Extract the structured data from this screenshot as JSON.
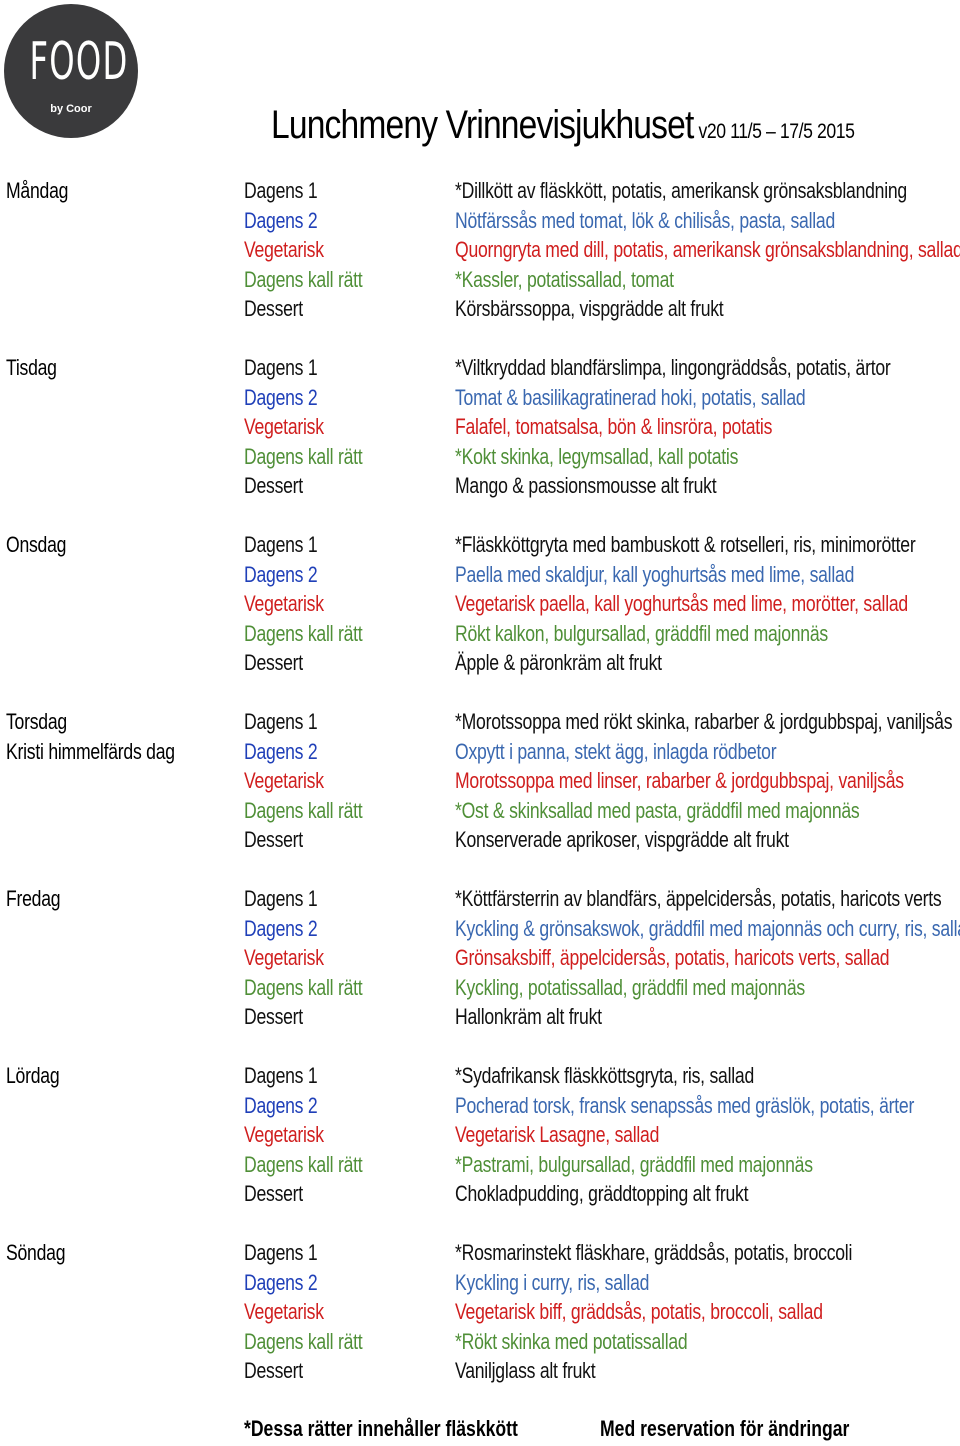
{
  "logo": {
    "word": "FOOD",
    "sub": "by Coor"
  },
  "header": {
    "title": "Lunchmeny Vrinnevisjukhuset",
    "subtitle": "v20 11/5 – 17/5 2015"
  },
  "colors": {
    "dagens1": "#111111",
    "dagens2": "#3a68b0",
    "vegetarisk": "#d01e1e",
    "kall": "#4f8f37",
    "dessert": "#111111",
    "category_dagens2": "#1f3fb8"
  },
  "days": [
    {
      "day": "Måndag",
      "note": "",
      "rows": [
        {
          "category": "Dagens 1",
          "dish": "*Dillkött av fläskkött, potatis, amerikansk grönsaksblandning"
        },
        {
          "category": "Dagens 2",
          "dish": "Nötfärssås med tomat, lök & chilisås, pasta, sallad"
        },
        {
          "category": "Vegetarisk",
          "dish": "Quorngryta med dill, potatis, amerikansk grönsaksblandning, sallad"
        },
        {
          "category": "Dagens kall rätt",
          "dish": "*Kassler, potatissallad, tomat"
        },
        {
          "category": "Dessert",
          "dish": "Körsbärssoppa, vispgrädde alt frukt"
        }
      ]
    },
    {
      "day": "Tisdag",
      "note": "",
      "rows": [
        {
          "category": "Dagens 1",
          "dish": "*Viltkryddad blandfärslimpa, lingongräddsås, potatis, ärtor"
        },
        {
          "category": "Dagens 2",
          "dish": "Tomat & basilikagratinerad hoki, potatis, sallad"
        },
        {
          "category": "Vegetarisk",
          "dish": "Falafel, tomatsalsa, bön & linsröra, potatis"
        },
        {
          "category": "Dagens kall rätt",
          "dish": "*Kokt skinka, legymsallad, kall potatis"
        },
        {
          "category": "Dessert",
          "dish": "Mango & passionsmousse alt frukt"
        }
      ]
    },
    {
      "day": "Onsdag",
      "note": "",
      "rows": [
        {
          "category": "Dagens 1",
          "dish": "*Fläskköttgryta med bambuskott & rotselleri, ris, minimorötter"
        },
        {
          "category": "Dagens 2",
          "dish": "Paella med skaldjur, kall yoghurtsås med lime, sallad"
        },
        {
          "category": "Vegetarisk",
          "dish": "Vegetarisk paella, kall yoghurtsås med lime, morötter, sallad"
        },
        {
          "category": "Dagens kall rätt",
          "dish": "Rökt kalkon, bulgursallad, gräddfil med majonnäs"
        },
        {
          "category": "Dessert",
          "dish": "Äpple & päronkräm alt frukt"
        }
      ]
    },
    {
      "day": "Torsdag",
      "note": "Kristi himmelfärds dag",
      "rows": [
        {
          "category": "Dagens 1",
          "dish": "*Morotssoppa med rökt skinka, rabarber & jordgubbspaj, vaniljsås"
        },
        {
          "category": "Dagens 2",
          "dish": "Oxpytt i panna, stekt ägg, inlagda rödbetor"
        },
        {
          "category": "Vegetarisk",
          "dish": "Morotssoppa med linser, rabarber & jordgubbspaj, vaniljsås"
        },
        {
          "category": "Dagens kall rätt",
          "dish": "*Ost & skinksallad med pasta, gräddfil med majonnäs"
        },
        {
          "category": "Dessert",
          "dish": "Konserverade aprikoser, vispgrädde alt frukt"
        }
      ]
    },
    {
      "day": "Fredag",
      "note": "",
      "rows": [
        {
          "category": "Dagens 1",
          "dish": "*Köttfärsterrin av blandfärs, äppelcidersås, potatis, haricots verts"
        },
        {
          "category": "Dagens 2",
          "dish": "Kyckling & grönsakswok, gräddfil med majonnäs och curry, ris, sallad"
        },
        {
          "category": "Vegetarisk",
          "dish": "Grönsaksbiff, äppelcidersås, potatis, haricots verts, sallad"
        },
        {
          "category": "Dagens kall rätt",
          "dish": "Kyckling, potatissallad, gräddfil med majonnäs"
        },
        {
          "category": "Dessert",
          "dish": "Hallonkräm alt frukt"
        }
      ]
    },
    {
      "day": "Lördag",
      "note": "",
      "rows": [
        {
          "category": "Dagens 1",
          "dish": "*Sydafrikansk fläskköttsgryta, ris, sallad"
        },
        {
          "category": "Dagens 2",
          "dish": "Pocherad torsk, fransk senapssås med gräslök, potatis, ärter"
        },
        {
          "category": "Vegetarisk",
          "dish": "Vegetarisk Lasagne, sallad"
        },
        {
          "category": "Dagens kall rätt",
          "dish": "*Pastrami, bulgursallad, gräddfil med majonnäs"
        },
        {
          "category": "Dessert",
          "dish": "Chokladpudding, gräddtopping alt frukt"
        }
      ]
    },
    {
      "day": "Söndag",
      "note": "",
      "rows": [
        {
          "category": "Dagens 1",
          "dish": "*Rosmarinstekt fläskhare, gräddsås, potatis, broccoli"
        },
        {
          "category": "Dagens 2",
          "dish": "Kyckling i curry, ris, sallad"
        },
        {
          "category": "Vegetarisk",
          "dish": "Vegetarisk biff, gräddsås, potatis, broccoli, sallad"
        },
        {
          "category": "Dagens kall rätt",
          "dish": "*Rökt skinka med potatissallad"
        },
        {
          "category": "Dessert",
          "dish": "Vaniljglass alt frukt"
        }
      ]
    }
  ],
  "footer": {
    "note": "*Dessa rätter innehåller fläskkött",
    "disclaimer": "Med reservation för ändringar"
  }
}
